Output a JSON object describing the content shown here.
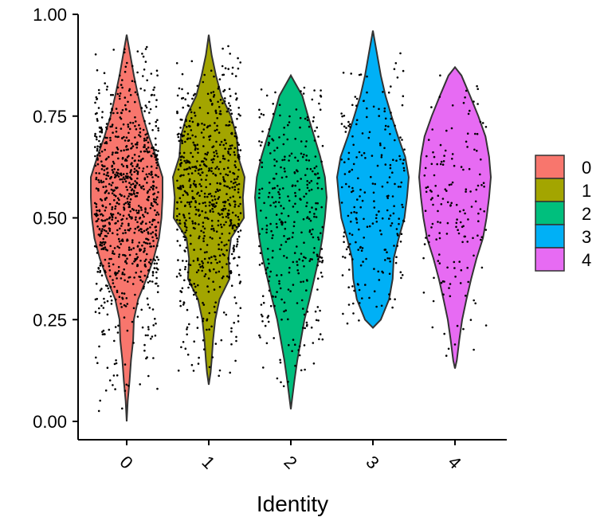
{
  "chart_data": {
    "type": "violin",
    "xlabel": "Identity",
    "ylabel": "",
    "categories": [
      "0",
      "1",
      "2",
      "3",
      "4"
    ],
    "ylim": [
      0,
      1
    ],
    "yticks": [
      "0.00",
      "0.25",
      "0.50",
      "0.75",
      "1.00"
    ],
    "ytick_values": [
      0,
      0.25,
      0.5,
      0.75,
      1.0
    ],
    "grid": false,
    "jitter_points": true,
    "legend": {
      "position": "right",
      "items": [
        {
          "label": "0",
          "color": "#F8766D"
        },
        {
          "label": "1",
          "color": "#A3A500"
        },
        {
          "label": "2",
          "color": "#00BF7D"
        },
        {
          "label": "3",
          "color": "#00B0F6"
        },
        {
          "label": "4",
          "color": "#E76BF3"
        }
      ]
    },
    "series": [
      {
        "category": "0",
        "color": "#F8766D",
        "min": 0.0,
        "max": 0.95,
        "approx_points": 900,
        "density": [
          [
            0.0,
            0.0
          ],
          [
            0.05,
            0.03
          ],
          [
            0.1,
            0.08
          ],
          [
            0.15,
            0.12
          ],
          [
            0.2,
            0.18
          ],
          [
            0.25,
            0.2
          ],
          [
            0.3,
            0.32
          ],
          [
            0.35,
            0.55
          ],
          [
            0.4,
            0.75
          ],
          [
            0.45,
            0.9
          ],
          [
            0.5,
            0.97
          ],
          [
            0.55,
            1.0
          ],
          [
            0.6,
            1.0
          ],
          [
            0.65,
            0.82
          ],
          [
            0.7,
            0.62
          ],
          [
            0.75,
            0.45
          ],
          [
            0.8,
            0.32
          ],
          [
            0.85,
            0.2
          ],
          [
            0.9,
            0.1
          ],
          [
            0.95,
            0.0
          ]
        ]
      },
      {
        "category": "1",
        "color": "#A3A500",
        "min": 0.09,
        "max": 0.95,
        "approx_points": 700,
        "density": [
          [
            0.09,
            0.0
          ],
          [
            0.12,
            0.05
          ],
          [
            0.15,
            0.08
          ],
          [
            0.2,
            0.12
          ],
          [
            0.25,
            0.18
          ],
          [
            0.3,
            0.3
          ],
          [
            0.35,
            0.58
          ],
          [
            0.4,
            0.55
          ],
          [
            0.45,
            0.62
          ],
          [
            0.5,
            0.98
          ],
          [
            0.55,
            0.95
          ],
          [
            0.6,
            1.0
          ],
          [
            0.65,
            0.82
          ],
          [
            0.7,
            0.78
          ],
          [
            0.75,
            0.62
          ],
          [
            0.8,
            0.35
          ],
          [
            0.85,
            0.2
          ],
          [
            0.9,
            0.08
          ],
          [
            0.95,
            0.0
          ]
        ]
      },
      {
        "category": "2",
        "color": "#00BF7D",
        "min": 0.03,
        "max": 0.85,
        "approx_points": 350,
        "density": [
          [
            0.03,
            0.0
          ],
          [
            0.1,
            0.1
          ],
          [
            0.15,
            0.18
          ],
          [
            0.2,
            0.28
          ],
          [
            0.25,
            0.38
          ],
          [
            0.3,
            0.52
          ],
          [
            0.35,
            0.65
          ],
          [
            0.4,
            0.78
          ],
          [
            0.45,
            0.88
          ],
          [
            0.5,
            0.95
          ],
          [
            0.55,
            1.0
          ],
          [
            0.6,
            0.95
          ],
          [
            0.65,
            0.82
          ],
          [
            0.7,
            0.65
          ],
          [
            0.75,
            0.48
          ],
          [
            0.8,
            0.32
          ],
          [
            0.85,
            0.0
          ]
        ]
      },
      {
        "category": "3",
        "color": "#00B0F6",
        "min": 0.23,
        "max": 0.96,
        "approx_points": 230,
        "density": [
          [
            0.23,
            0.0
          ],
          [
            0.25,
            0.22
          ],
          [
            0.3,
            0.45
          ],
          [
            0.35,
            0.55
          ],
          [
            0.4,
            0.58
          ],
          [
            0.45,
            0.72
          ],
          [
            0.5,
            0.88
          ],
          [
            0.55,
            0.95
          ],
          [
            0.6,
            1.0
          ],
          [
            0.65,
            0.9
          ],
          [
            0.7,
            0.7
          ],
          [
            0.75,
            0.52
          ],
          [
            0.8,
            0.35
          ],
          [
            0.85,
            0.22
          ],
          [
            0.9,
            0.12
          ],
          [
            0.96,
            0.0
          ]
        ]
      },
      {
        "category": "4",
        "color": "#E76BF3",
        "min": 0.13,
        "max": 0.87,
        "approx_points": 160,
        "density": [
          [
            0.13,
            0.0
          ],
          [
            0.15,
            0.05
          ],
          [
            0.2,
            0.12
          ],
          [
            0.25,
            0.2
          ],
          [
            0.3,
            0.32
          ],
          [
            0.35,
            0.45
          ],
          [
            0.4,
            0.6
          ],
          [
            0.45,
            0.78
          ],
          [
            0.5,
            0.88
          ],
          [
            0.55,
            0.95
          ],
          [
            0.6,
            1.0
          ],
          [
            0.65,
            0.95
          ],
          [
            0.7,
            0.85
          ],
          [
            0.75,
            0.65
          ],
          [
            0.8,
            0.42
          ],
          [
            0.85,
            0.18
          ],
          [
            0.87,
            0.0
          ]
        ]
      }
    ]
  }
}
